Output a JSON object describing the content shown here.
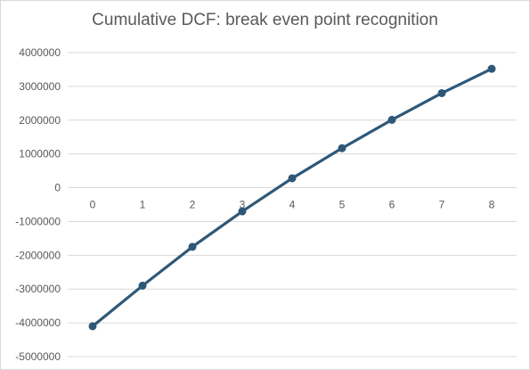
{
  "chart_data": {
    "type": "line",
    "title": "Cumulative DCF: break even point recognition",
    "xlabel": "",
    "ylabel": "",
    "categories": [
      "0",
      "1",
      "2",
      "3",
      "4",
      "5",
      "6",
      "7",
      "8"
    ],
    "series": [
      {
        "values": [
          -4100000,
          -2900000,
          -1750000,
          -700000,
          280000,
          1170000,
          2010000,
          2800000,
          3520000
        ],
        "color": "#2e5878"
      }
    ],
    "ylim": [
      -5000000,
      4000000
    ],
    "yticks": [
      "4000000",
      "3000000",
      "2000000",
      "1000000",
      "0",
      "-1000000",
      "-2000000",
      "-3000000",
      "-4000000",
      "-5000000"
    ],
    "grid": "horizontal",
    "legend": "none",
    "colors": {
      "gridline": "#d9d9d9",
      "text": "#595959",
      "series": "#2e5878"
    }
  }
}
